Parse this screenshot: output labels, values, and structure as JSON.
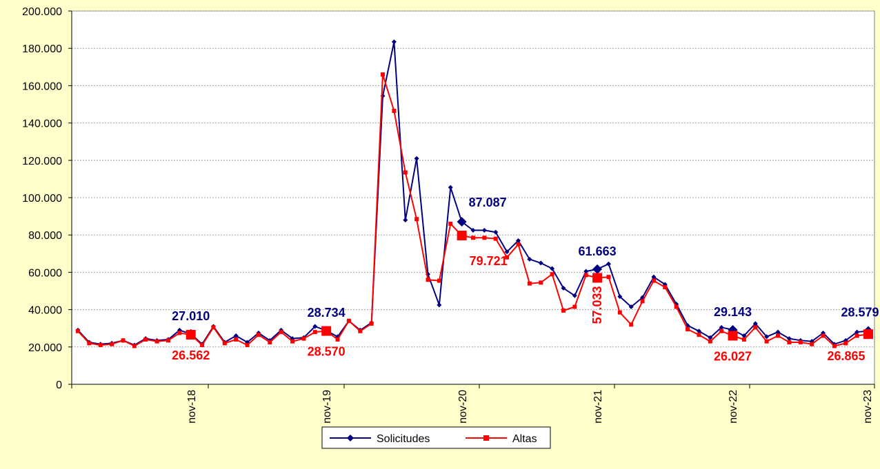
{
  "chart_data": {
    "type": "line",
    "ylim": [
      0,
      200000
    ],
    "yticks": [
      0,
      20000,
      40000,
      60000,
      80000,
      100000,
      120000,
      140000,
      160000,
      180000,
      200000
    ],
    "ytick_labels": [
      "0",
      "20.000",
      "40.000",
      "60.000",
      "80.000",
      "100.000",
      "120.000",
      "140.000",
      "160.000",
      "180.000",
      "200.000"
    ],
    "xtick_labels": [
      "nov-18",
      "nov-19",
      "nov-20",
      "nov-21",
      "nov-22",
      "nov-23"
    ],
    "xtick_index": [
      11,
      23,
      35,
      47,
      59,
      71
    ],
    "grid": "horizontal",
    "legend": "bottom-center",
    "colors": {
      "Solicitudes": "#000080",
      "Altas": "#ff0000",
      "plot_bg": "#ffffff",
      "page_bg": "#ffffcc"
    },
    "series": [
      {
        "name": "Solicitudes",
        "marker": "diamond",
        "values": [
          29000,
          22500,
          21500,
          22000,
          23500,
          21000,
          24500,
          23500,
          24000,
          29000,
          27010,
          21500,
          31000,
          22500,
          26000,
          22500,
          27500,
          23500,
          29000,
          24500,
          25000,
          31000,
          28734,
          25500,
          34000,
          29000,
          33000,
          154500,
          183500,
          88000,
          121000,
          59000,
          42500,
          105500,
          87087,
          82500,
          82500,
          81500,
          71000,
          77000,
          67000,
          65000,
          62000,
          51500,
          47500,
          60500,
          61663,
          64500,
          47000,
          41500,
          46500,
          57500,
          53500,
          43000,
          31500,
          28500,
          25000,
          30500,
          29143,
          26000,
          32500,
          25500,
          28000,
          24500,
          23500,
          23000,
          27500,
          21500,
          23500,
          28000,
          28579
        ]
      },
      {
        "name": "Altas",
        "marker": "square",
        "values": [
          28500,
          22000,
          21000,
          21500,
          23500,
          20500,
          24000,
          23000,
          23500,
          27500,
          26562,
          21000,
          30500,
          22000,
          24000,
          21000,
          26500,
          22500,
          28000,
          23000,
          24500,
          28000,
          28570,
          24000,
          34000,
          28500,
          32500,
          166000,
          146500,
          113500,
          88500,
          56000,
          55500,
          86000,
          79721,
          78500,
          78500,
          78000,
          68000,
          75000,
          54000,
          54500,
          59000,
          39500,
          41500,
          58500,
          57033,
          57500,
          38500,
          32000,
          44500,
          55500,
          52000,
          41500,
          29500,
          26500,
          23000,
          28500,
          26027,
          24000,
          30500,
          23000,
          26000,
          22500,
          22500,
          21500,
          26000,
          20500,
          22000,
          26000,
          26865
        ]
      }
    ],
    "annotations": {
      "Solicitudes": [
        {
          "index": 10,
          "label": "27.010"
        },
        {
          "index": 22,
          "label": "28.734"
        },
        {
          "index": 34,
          "label": "87.087"
        },
        {
          "index": 46,
          "label": "61.663"
        },
        {
          "index": 58,
          "label": "29.143"
        },
        {
          "index": 70,
          "label": "28.579"
        }
      ],
      "Altas": [
        {
          "index": 10,
          "label": "26.562"
        },
        {
          "index": 22,
          "label": "28.570"
        },
        {
          "index": 34,
          "label": "79.721"
        },
        {
          "index": 46,
          "label": "57.033",
          "orientation": "vertical"
        },
        {
          "index": 58,
          "label": "26.027"
        },
        {
          "index": 70,
          "label": "26.865"
        }
      ]
    }
  }
}
